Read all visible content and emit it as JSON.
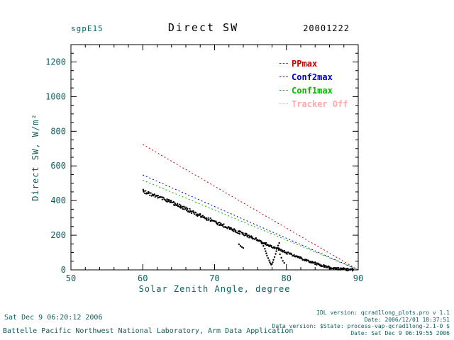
{
  "header": {
    "site": "sgpE15",
    "title": "Direct SW",
    "date": "20001222"
  },
  "colors": {
    "annotation": "#0b5e5e",
    "axis": "#000000",
    "background": "#ffffff"
  },
  "chart_data": {
    "type": "scatter",
    "title": "Direct SW",
    "xlabel": "Solar Zenith Angle, degree",
    "ylabel": "Direct SW, W/m²",
    "xlim": [
      50,
      90
    ],
    "ylim": [
      0,
      1300
    ],
    "xticks": [
      50,
      60,
      70,
      80,
      90
    ],
    "yticks": [
      0,
      200,
      400,
      600,
      800,
      1000,
      1200
    ],
    "x_minor_step": 2,
    "y_minor_step": 50,
    "grid": false,
    "legend_position": "upper right inside plot",
    "legend": [
      {
        "label": "PPmax",
        "color": "#cc0000"
      },
      {
        "label": "Conf2max",
        "color": "#0000cc"
      },
      {
        "label": "Conf1max",
        "color": "#00bb00"
      },
      {
        "label": "Tracker Off",
        "color": "#ffaaaa"
      }
    ],
    "series": [
      {
        "name": "PPmax",
        "color": "#cc0000",
        "style": "dotted-line",
        "points": [
          [
            60,
            724
          ],
          [
            90,
            0
          ]
        ]
      },
      {
        "name": "Conf2max",
        "color": "#0000cc",
        "style": "dotted-line",
        "points": [
          [
            60,
            548
          ],
          [
            90,
            0
          ]
        ]
      },
      {
        "name": "Conf1max",
        "color": "#00bb00",
        "style": "dotted-line",
        "points": [
          [
            60,
            518
          ],
          [
            90,
            0
          ]
        ]
      },
      {
        "name": "measured-direct-sw",
        "color": "#000000",
        "style": "scatter-band",
        "points": [
          [
            60,
            455
          ],
          [
            61,
            440
          ],
          [
            62,
            424
          ],
          [
            63,
            407
          ],
          [
            64,
            390
          ],
          [
            65,
            371
          ],
          [
            66,
            352
          ],
          [
            67,
            333
          ],
          [
            68,
            314
          ],
          [
            69,
            296
          ],
          [
            70,
            279
          ],
          [
            71,
            260
          ],
          [
            72,
            242
          ],
          [
            73,
            225
          ],
          [
            74,
            207
          ],
          [
            75,
            190
          ],
          [
            76,
            172
          ],
          [
            77,
            152
          ],
          [
            78,
            135
          ],
          [
            79,
            117
          ],
          [
            80,
            100
          ],
          [
            81,
            84
          ],
          [
            82,
            68
          ],
          [
            83,
            53
          ],
          [
            84,
            38
          ],
          [
            85,
            25
          ],
          [
            86,
            14
          ],
          [
            87,
            7
          ],
          [
            88,
            3
          ],
          [
            89,
            1
          ],
          [
            89.4,
            1
          ]
        ]
      },
      {
        "name": "measured-outliers",
        "color": "#000000",
        "style": "scatter",
        "points": [
          [
            73.4,
            148
          ],
          [
            73.6,
            138
          ],
          [
            73.8,
            132
          ],
          [
            74.0,
            126
          ],
          [
            76.4,
            168
          ],
          [
            76.6,
            152
          ],
          [
            76.8,
            138
          ],
          [
            77.0,
            122
          ],
          [
            77.1,
            108
          ],
          [
            77.2,
            95
          ],
          [
            77.3,
            82
          ],
          [
            77.45,
            68
          ],
          [
            77.6,
            55
          ],
          [
            77.7,
            44
          ],
          [
            77.8,
            36
          ],
          [
            77.9,
            30
          ],
          [
            78.0,
            34
          ],
          [
            78.1,
            44
          ],
          [
            78.2,
            58
          ],
          [
            78.35,
            74
          ],
          [
            78.5,
            92
          ],
          [
            78.6,
            108
          ],
          [
            78.7,
            124
          ],
          [
            78.85,
            140
          ],
          [
            79.0,
            155
          ],
          [
            79.1,
            90
          ],
          [
            79.3,
            70
          ],
          [
            79.5,
            52
          ],
          [
            79.7,
            40
          ]
        ]
      }
    ]
  },
  "footer": {
    "generated": "Sat Dec  9 06:20:12 2006",
    "organization": "Battelle Pacific Northwest National Laboratory, Arm Data Application",
    "info": [
      "IDL version: qcrad1long_plots.pro v 1.1",
      "Date: 2006/12/01 18:37:51",
      "Data version: $State: process-vap-qcrad1long-2.1-0 $",
      "Date: Sat Dec  9 06:19:55 2006"
    ]
  }
}
